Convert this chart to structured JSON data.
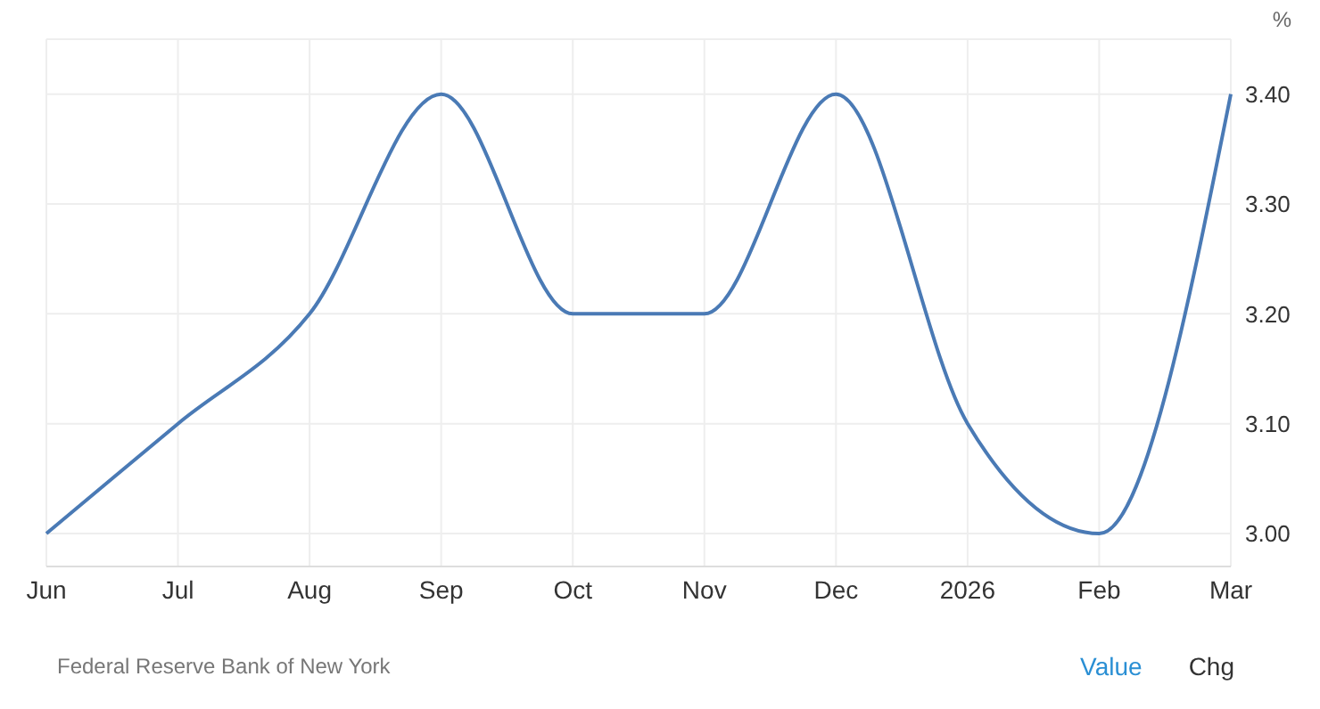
{
  "chart_data": {
    "type": "line",
    "ylabel": "%",
    "categories": [
      "Jun",
      "Jul",
      "Aug",
      "Sep",
      "Oct",
      "Nov",
      "Dec",
      "2026",
      "Feb",
      "Mar"
    ],
    "series": [
      {
        "color": "#4a7ab5",
        "values": [
          3.0,
          3.1,
          3.2,
          3.4,
          3.2,
          3.2,
          3.4,
          3.1,
          3.0,
          3.4
        ]
      }
    ],
    "ylim": [
      2.97,
      3.45
    ],
    "yticks": [
      {
        "value": 3.0,
        "label": "3.00"
      },
      {
        "value": 3.1,
        "label": "3.10"
      },
      {
        "value": 3.2,
        "label": "3.20"
      },
      {
        "value": 3.3,
        "label": "3.30"
      },
      {
        "value": 3.4,
        "label": "3.40"
      }
    ],
    "grid": true,
    "legend": false,
    "marker": "none",
    "line_style": "solid",
    "annotations": [
      "Federal Reserve Bank of New York",
      "Value",
      "Chg"
    ]
  }
}
